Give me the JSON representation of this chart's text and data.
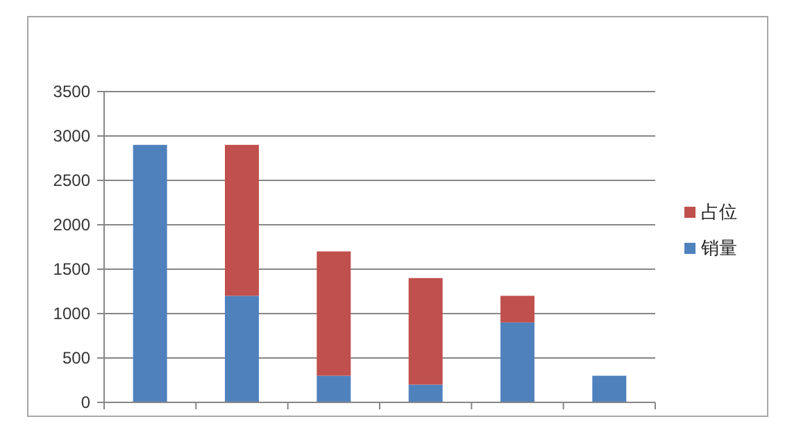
{
  "chart_data": {
    "type": "bar",
    "stacked": true,
    "categories": [
      null,
      null,
      null,
      null,
      null,
      null
    ],
    "series": [
      {
        "name": "销量",
        "color": "#4f81bd",
        "values": [
          2900,
          1200,
          300,
          200,
          900,
          300
        ]
      },
      {
        "name": "占位",
        "color": "#c0504d",
        "values": [
          0,
          1700,
          1400,
          1200,
          300,
          0
        ]
      }
    ],
    "ylim": [
      0,
      3500
    ],
    "yticks": [
      0,
      500,
      1000,
      1500,
      2000,
      2500,
      3000,
      3500
    ],
    "grid": "y",
    "legend": "right",
    "tick_labels": "y"
  }
}
